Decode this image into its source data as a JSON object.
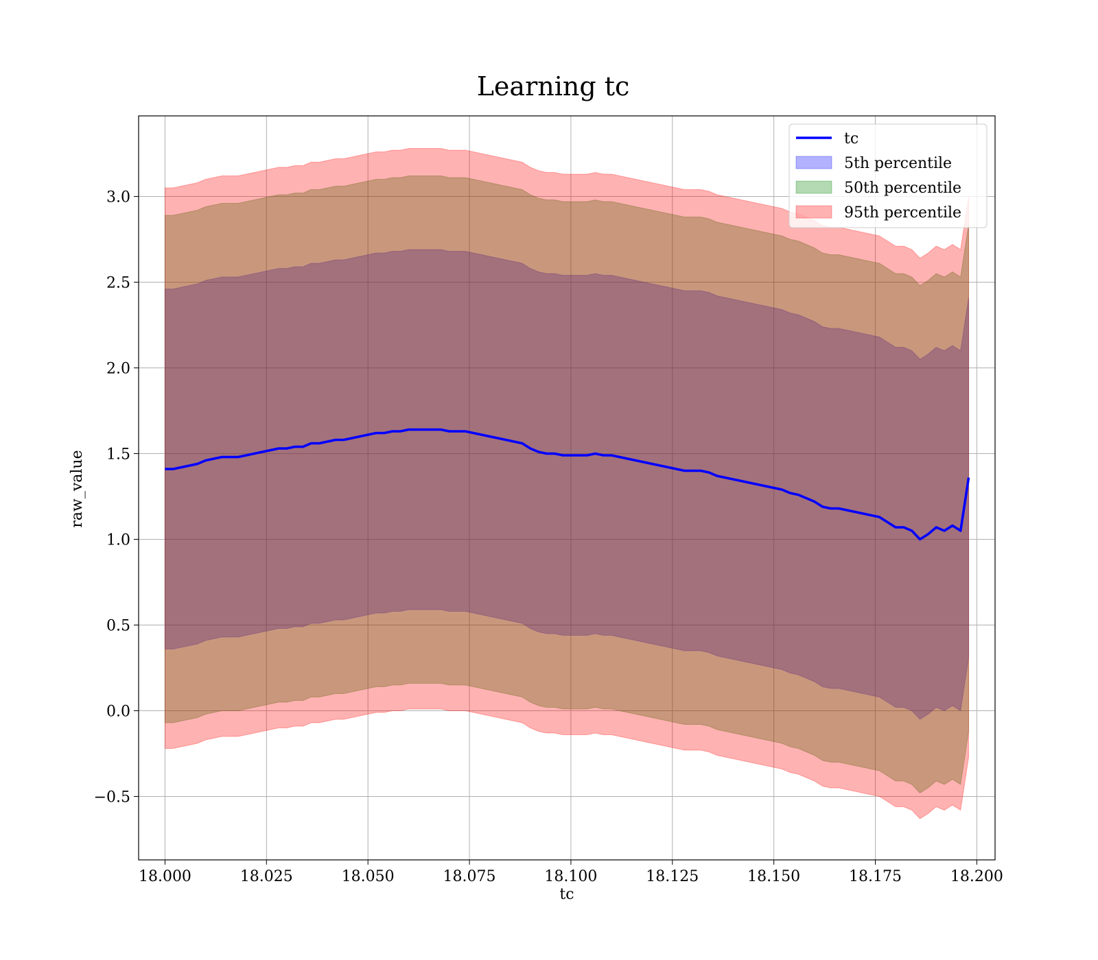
{
  "chart_data": {
    "type": "area",
    "title": "Learning tc",
    "xlabel": "tc",
    "ylabel": "raw_value",
    "xlim": [
      17.9935,
      18.2045
    ],
    "ylim": [
      -0.87,
      3.47
    ],
    "grid": true,
    "legend_position": "top-right",
    "xticks": [
      18.0,
      18.025,
      18.05,
      18.075,
      18.1,
      18.125,
      18.15,
      18.175,
      18.2
    ],
    "xtick_labels": [
      "18.000",
      "18.025",
      "18.050",
      "18.075",
      "18.100",
      "18.125",
      "18.150",
      "18.175",
      "18.200"
    ],
    "yticks": [
      -0.5,
      0.0,
      0.5,
      1.0,
      1.5,
      2.0,
      2.5,
      3.0
    ],
    "ytick_labels": [
      "−0.5",
      "0.0",
      "0.5",
      "1.0",
      "1.5",
      "2.0",
      "2.5",
      "3.0"
    ],
    "x": [
      18.0,
      18.002,
      18.004,
      18.006,
      18.008,
      18.01,
      18.012,
      18.014,
      18.016,
      18.018,
      18.02,
      18.022,
      18.024,
      18.026,
      18.028,
      18.03,
      18.032,
      18.034,
      18.036,
      18.038,
      18.04,
      18.042,
      18.044,
      18.046,
      18.048,
      18.05,
      18.052,
      18.054,
      18.056,
      18.058,
      18.06,
      18.062,
      18.064,
      18.066,
      18.068,
      18.07,
      18.072,
      18.074,
      18.076,
      18.078,
      18.08,
      18.082,
      18.084,
      18.086,
      18.088,
      18.09,
      18.092,
      18.094,
      18.096,
      18.098,
      18.1,
      18.102,
      18.104,
      18.106,
      18.108,
      18.11,
      18.112,
      18.114,
      18.116,
      18.118,
      18.12,
      18.122,
      18.124,
      18.126,
      18.128,
      18.13,
      18.132,
      18.134,
      18.136,
      18.138,
      18.14,
      18.142,
      18.144,
      18.146,
      18.148,
      18.15,
      18.152,
      18.154,
      18.156,
      18.158,
      18.16,
      18.162,
      18.164,
      18.166,
      18.168,
      18.17,
      18.172,
      18.174,
      18.176,
      18.178,
      18.18,
      18.182,
      18.184,
      18.186,
      18.188,
      18.19,
      18.192,
      18.194,
      18.196,
      18.198
    ],
    "series": [
      {
        "name": "tc",
        "values": [
          1.41,
          1.41,
          1.42,
          1.43,
          1.44,
          1.46,
          1.47,
          1.48,
          1.48,
          1.48,
          1.49,
          1.5,
          1.51,
          1.52,
          1.53,
          1.53,
          1.54,
          1.54,
          1.56,
          1.56,
          1.57,
          1.58,
          1.58,
          1.59,
          1.6,
          1.61,
          1.62,
          1.62,
          1.63,
          1.63,
          1.64,
          1.64,
          1.64,
          1.64,
          1.64,
          1.63,
          1.63,
          1.63,
          1.62,
          1.61,
          1.6,
          1.59,
          1.58,
          1.57,
          1.56,
          1.53,
          1.51,
          1.5,
          1.5,
          1.49,
          1.49,
          1.49,
          1.49,
          1.5,
          1.49,
          1.49,
          1.48,
          1.47,
          1.46,
          1.45,
          1.44,
          1.43,
          1.42,
          1.41,
          1.4,
          1.4,
          1.4,
          1.39,
          1.37,
          1.36,
          1.35,
          1.34,
          1.33,
          1.32,
          1.31,
          1.3,
          1.29,
          1.27,
          1.26,
          1.24,
          1.22,
          1.19,
          1.18,
          1.18,
          1.17,
          1.16,
          1.15,
          1.14,
          1.13,
          1.1,
          1.07,
          1.07,
          1.05,
          1.0,
          1.03,
          1.07,
          1.05,
          1.08,
          1.05,
          1.36
        ]
      },
      {
        "name": "5th percentile",
        "lower": [
          0.36,
          0.36,
          0.37,
          0.38,
          0.39,
          0.41,
          0.42,
          0.43,
          0.43,
          0.43,
          0.44,
          0.45,
          0.46,
          0.47,
          0.48,
          0.48,
          0.49,
          0.49,
          0.51,
          0.51,
          0.52,
          0.53,
          0.53,
          0.54,
          0.55,
          0.56,
          0.57,
          0.57,
          0.58,
          0.58,
          0.59,
          0.59,
          0.59,
          0.59,
          0.59,
          0.58,
          0.58,
          0.58,
          0.57,
          0.56,
          0.55,
          0.54,
          0.53,
          0.52,
          0.51,
          0.48,
          0.46,
          0.45,
          0.45,
          0.44,
          0.44,
          0.44,
          0.44,
          0.45,
          0.44,
          0.44,
          0.43,
          0.42,
          0.41,
          0.4,
          0.39,
          0.38,
          0.37,
          0.36,
          0.35,
          0.35,
          0.35,
          0.34,
          0.32,
          0.31,
          0.3,
          0.29,
          0.28,
          0.27,
          0.26,
          0.25,
          0.24,
          0.22,
          0.21,
          0.19,
          0.17,
          0.14,
          0.13,
          0.13,
          0.12,
          0.11,
          0.1,
          0.09,
          0.08,
          0.05,
          0.02,
          0.02,
          0.0,
          -0.05,
          -0.02,
          0.02,
          0.0,
          0.03,
          0.0,
          0.31
        ],
        "upper": [
          2.46,
          2.46,
          2.47,
          2.48,
          2.49,
          2.51,
          2.52,
          2.53,
          2.53,
          2.53,
          2.54,
          2.55,
          2.56,
          2.57,
          2.58,
          2.58,
          2.59,
          2.59,
          2.61,
          2.61,
          2.62,
          2.63,
          2.63,
          2.64,
          2.65,
          2.66,
          2.67,
          2.67,
          2.68,
          2.68,
          2.69,
          2.69,
          2.69,
          2.69,
          2.69,
          2.68,
          2.68,
          2.68,
          2.67,
          2.66,
          2.65,
          2.64,
          2.63,
          2.62,
          2.61,
          2.58,
          2.56,
          2.55,
          2.55,
          2.54,
          2.54,
          2.54,
          2.54,
          2.55,
          2.54,
          2.54,
          2.53,
          2.52,
          2.51,
          2.5,
          2.49,
          2.48,
          2.47,
          2.46,
          2.45,
          2.45,
          2.45,
          2.44,
          2.42,
          2.41,
          2.4,
          2.39,
          2.38,
          2.37,
          2.36,
          2.35,
          2.34,
          2.32,
          2.31,
          2.29,
          2.27,
          2.24,
          2.23,
          2.23,
          2.22,
          2.21,
          2.2,
          2.19,
          2.18,
          2.15,
          2.12,
          2.12,
          2.1,
          2.05,
          2.08,
          2.12,
          2.1,
          2.13,
          2.1,
          2.41
        ]
      },
      {
        "name": "50th percentile",
        "lower": [
          -0.07,
          -0.07,
          -0.06,
          -0.05,
          -0.04,
          -0.02,
          -0.01,
          0.0,
          0.0,
          0.0,
          0.01,
          0.02,
          0.03,
          0.04,
          0.05,
          0.05,
          0.06,
          0.06,
          0.08,
          0.08,
          0.09,
          0.1,
          0.1,
          0.11,
          0.12,
          0.13,
          0.14,
          0.14,
          0.15,
          0.15,
          0.16,
          0.16,
          0.16,
          0.16,
          0.16,
          0.15,
          0.15,
          0.15,
          0.14,
          0.13,
          0.12,
          0.11,
          0.1,
          0.09,
          0.08,
          0.05,
          0.03,
          0.02,
          0.02,
          0.01,
          0.01,
          0.01,
          0.01,
          0.02,
          0.01,
          0.01,
          0.0,
          -0.01,
          -0.02,
          -0.03,
          -0.04,
          -0.05,
          -0.06,
          -0.07,
          -0.08,
          -0.08,
          -0.08,
          -0.09,
          -0.11,
          -0.12,
          -0.13,
          -0.14,
          -0.15,
          -0.16,
          -0.17,
          -0.18,
          -0.19,
          -0.21,
          -0.22,
          -0.24,
          -0.26,
          -0.29,
          -0.3,
          -0.3,
          -0.31,
          -0.32,
          -0.33,
          -0.34,
          -0.35,
          -0.38,
          -0.41,
          -0.41,
          -0.43,
          -0.48,
          -0.45,
          -0.41,
          -0.43,
          -0.4,
          -0.43,
          -0.12
        ],
        "upper": [
          2.89,
          2.89,
          2.9,
          2.91,
          2.92,
          2.94,
          2.95,
          2.96,
          2.96,
          2.96,
          2.97,
          2.98,
          2.99,
          3.0,
          3.01,
          3.01,
          3.02,
          3.02,
          3.04,
          3.04,
          3.05,
          3.06,
          3.06,
          3.07,
          3.08,
          3.09,
          3.1,
          3.1,
          3.11,
          3.11,
          3.12,
          3.12,
          3.12,
          3.12,
          3.12,
          3.11,
          3.11,
          3.11,
          3.1,
          3.09,
          3.08,
          3.07,
          3.06,
          3.05,
          3.04,
          3.01,
          2.99,
          2.98,
          2.98,
          2.97,
          2.97,
          2.97,
          2.97,
          2.98,
          2.97,
          2.97,
          2.96,
          2.95,
          2.94,
          2.93,
          2.92,
          2.91,
          2.9,
          2.89,
          2.88,
          2.88,
          2.88,
          2.87,
          2.85,
          2.84,
          2.83,
          2.82,
          2.81,
          2.8,
          2.79,
          2.78,
          2.77,
          2.75,
          2.74,
          2.72,
          2.7,
          2.67,
          2.66,
          2.66,
          2.65,
          2.64,
          2.63,
          2.62,
          2.61,
          2.58,
          2.55,
          2.55,
          2.53,
          2.48,
          2.51,
          2.55,
          2.53,
          2.56,
          2.53,
          2.84
        ]
      },
      {
        "name": "95th percentile",
        "lower": [
          -0.22,
          -0.22,
          -0.21,
          -0.2,
          -0.19,
          -0.17,
          -0.16,
          -0.15,
          -0.15,
          -0.15,
          -0.14,
          -0.13,
          -0.12,
          -0.11,
          -0.1,
          -0.1,
          -0.09,
          -0.09,
          -0.07,
          -0.07,
          -0.06,
          -0.05,
          -0.05,
          -0.04,
          -0.03,
          -0.02,
          -0.01,
          -0.01,
          0.0,
          0.0,
          0.01,
          0.01,
          0.01,
          0.01,
          0.01,
          0.0,
          0.0,
          0.0,
          -0.01,
          -0.02,
          -0.03,
          -0.04,
          -0.05,
          -0.06,
          -0.07,
          -0.1,
          -0.12,
          -0.13,
          -0.13,
          -0.14,
          -0.14,
          -0.14,
          -0.14,
          -0.13,
          -0.14,
          -0.14,
          -0.15,
          -0.16,
          -0.17,
          -0.18,
          -0.19,
          -0.2,
          -0.21,
          -0.22,
          -0.23,
          -0.23,
          -0.23,
          -0.24,
          -0.26,
          -0.27,
          -0.28,
          -0.29,
          -0.3,
          -0.31,
          -0.32,
          -0.33,
          -0.34,
          -0.36,
          -0.37,
          -0.39,
          -0.41,
          -0.44,
          -0.45,
          -0.45,
          -0.46,
          -0.47,
          -0.48,
          -0.49,
          -0.5,
          -0.53,
          -0.56,
          -0.56,
          -0.58,
          -0.63,
          -0.6,
          -0.56,
          -0.58,
          -0.55,
          -0.58,
          -0.27
        ],
        "upper": [
          3.05,
          3.05,
          3.06,
          3.07,
          3.08,
          3.1,
          3.11,
          3.12,
          3.12,
          3.12,
          3.13,
          3.14,
          3.15,
          3.16,
          3.17,
          3.17,
          3.18,
          3.18,
          3.2,
          3.2,
          3.21,
          3.22,
          3.22,
          3.23,
          3.24,
          3.25,
          3.26,
          3.26,
          3.27,
          3.27,
          3.28,
          3.28,
          3.28,
          3.28,
          3.28,
          3.27,
          3.27,
          3.27,
          3.26,
          3.25,
          3.24,
          3.23,
          3.22,
          3.21,
          3.2,
          3.17,
          3.15,
          3.14,
          3.14,
          3.13,
          3.13,
          3.13,
          3.13,
          3.14,
          3.13,
          3.13,
          3.12,
          3.11,
          3.1,
          3.09,
          3.08,
          3.07,
          3.06,
          3.05,
          3.04,
          3.04,
          3.04,
          3.03,
          3.01,
          3.0,
          2.99,
          2.98,
          2.97,
          2.96,
          2.95,
          2.94,
          2.93,
          2.91,
          2.9,
          2.88,
          2.86,
          2.83,
          2.82,
          2.82,
          2.81,
          2.8,
          2.79,
          2.78,
          2.77,
          2.74,
          2.71,
          2.71,
          2.69,
          2.64,
          2.67,
          2.71,
          2.69,
          2.72,
          2.69,
          3.0
        ]
      }
    ],
    "colors": {
      "tc": "#0000ff",
      "5th percentile": "#0000ff",
      "50th percentile": "#008000",
      "95th percentile": "#ff0000"
    }
  }
}
